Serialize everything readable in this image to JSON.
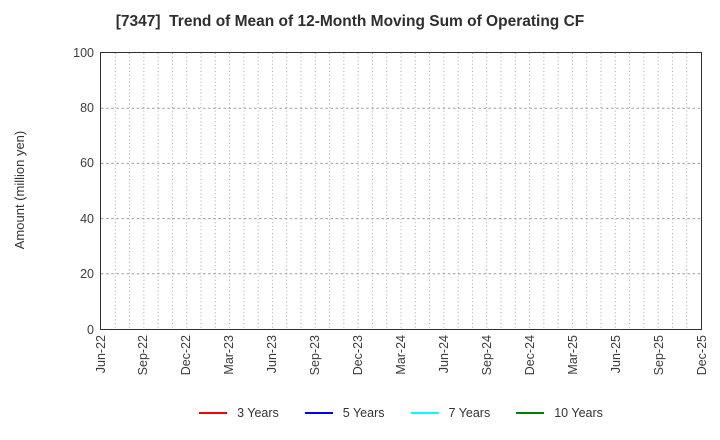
{
  "chart_data": {
    "type": "line",
    "title": "[7347]  Trend of Mean of 12-Month Moving Sum of Operating CF",
    "ylabel": "Amount (million yen)",
    "xlabel": "",
    "ylim": [
      0,
      100
    ],
    "yticks": [
      0,
      20,
      40,
      60,
      80,
      100
    ],
    "x_tick_labels": [
      "Jun-22",
      "Sep-22",
      "Dec-22",
      "Mar-23",
      "Jun-23",
      "Sep-23",
      "Dec-23",
      "Mar-24",
      "Jun-24",
      "Sep-24",
      "Dec-24",
      "Mar-25",
      "Jun-25",
      "Sep-25",
      "Dec-25"
    ],
    "x_minor_divisions_per_label": 3,
    "grid": true,
    "plot_is_empty": true,
    "legend_position": "bottom",
    "series": [
      {
        "name": "3 Years",
        "color": "#ff0000",
        "values": []
      },
      {
        "name": "5 Years",
        "color": "#0000ff",
        "values": []
      },
      {
        "name": "7 Years",
        "color": "#00ffff",
        "values": []
      },
      {
        "name": "10 Years",
        "color": "#008000",
        "values": []
      }
    ],
    "style": {
      "axis_color": "#2f2f2f",
      "grid_color_vertical": "#a6a6a6",
      "grid_color_horizontal": "#9c9c9c",
      "text_color": "#3c3c3c"
    }
  }
}
